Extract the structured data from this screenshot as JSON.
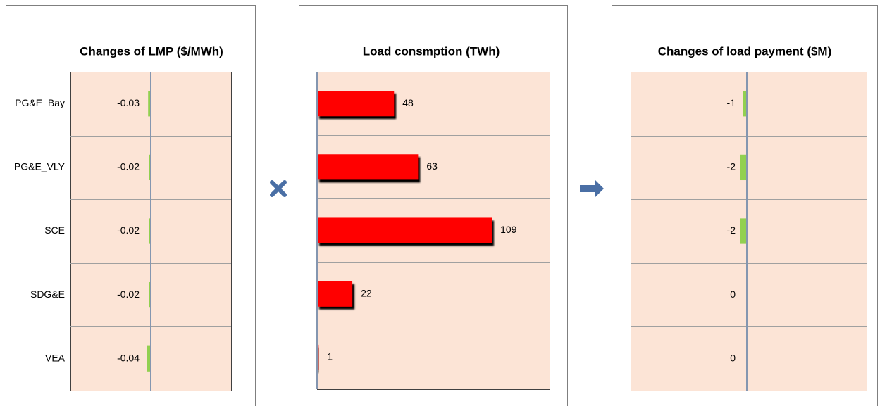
{
  "chart_data": [
    {
      "type": "bar",
      "orientation": "horizontal",
      "title": "Changes of LMP ($/MWh)",
      "categories": [
        "PG&E_Bay",
        "PG&E_VLY",
        "SCE",
        "SDG&E",
        "VEA"
      ],
      "values": [
        -0.03,
        -0.02,
        -0.02,
        -0.02,
        -0.04
      ],
      "color": "#92d050",
      "xlim": [
        -0.9,
        0.9
      ],
      "grid": true
    },
    {
      "type": "bar",
      "orientation": "horizontal",
      "title": "Load consmption (TWh)",
      "values": [
        48,
        63,
        109,
        22,
        1
      ],
      "color": "#ff0000",
      "xlim": [
        0,
        145
      ],
      "grid": true
    },
    {
      "type": "bar",
      "orientation": "horizontal",
      "title": "Changes of load payment ($M)",
      "values": [
        -1,
        -2,
        -2,
        0,
        0
      ],
      "color": "#92d050",
      "xlim": [
        -33,
        34
      ],
      "grid": true
    }
  ]
}
